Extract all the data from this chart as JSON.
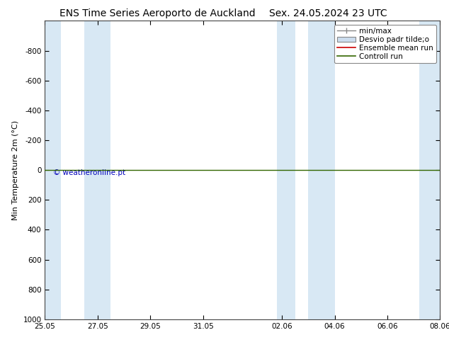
{
  "title_left": "ENS Time Series Aeroporto de Auckland",
  "title_right": "Sex. 24.05.2024 23 UTC",
  "ylabel": "Min Temperature 2m (°C)",
  "ylim_top": -1000,
  "ylim_bottom": 1000,
  "yticks": [
    -800,
    -600,
    -400,
    -200,
    0,
    200,
    400,
    600,
    800,
    1000
  ],
  "xtick_labels": [
    "25.05",
    "27.05",
    "29.05",
    "31.05",
    "02.06",
    "04.06",
    "06.06",
    "08.06"
  ],
  "xtick_positions": [
    0,
    2,
    4,
    6,
    9,
    11,
    13,
    15
  ],
  "shade_bands": [
    [
      0.0,
      0.5
    ],
    [
      1.5,
      2.5
    ],
    [
      9.0,
      9.5
    ],
    [
      10.0,
      11.0
    ],
    [
      14.5,
      15.0
    ]
  ],
  "band_color": "#d8e8f4",
  "bg_color": "#ffffff",
  "plot_bg_color": "#ffffff",
  "green_line_color": "#336600",
  "red_line_color": "#cc0000",
  "watermark": "© weatheronline.pt",
  "watermark_color": "#0000bb",
  "legend_entry_0": "min/max",
  "legend_entry_1": "Desvio padr tilde;o",
  "legend_entry_2": "Ensemble mean run",
  "legend_entry_3": "Controll run",
  "title_fontsize": 10,
  "axis_fontsize": 8,
  "tick_fontsize": 7.5,
  "legend_fontsize": 7.5
}
